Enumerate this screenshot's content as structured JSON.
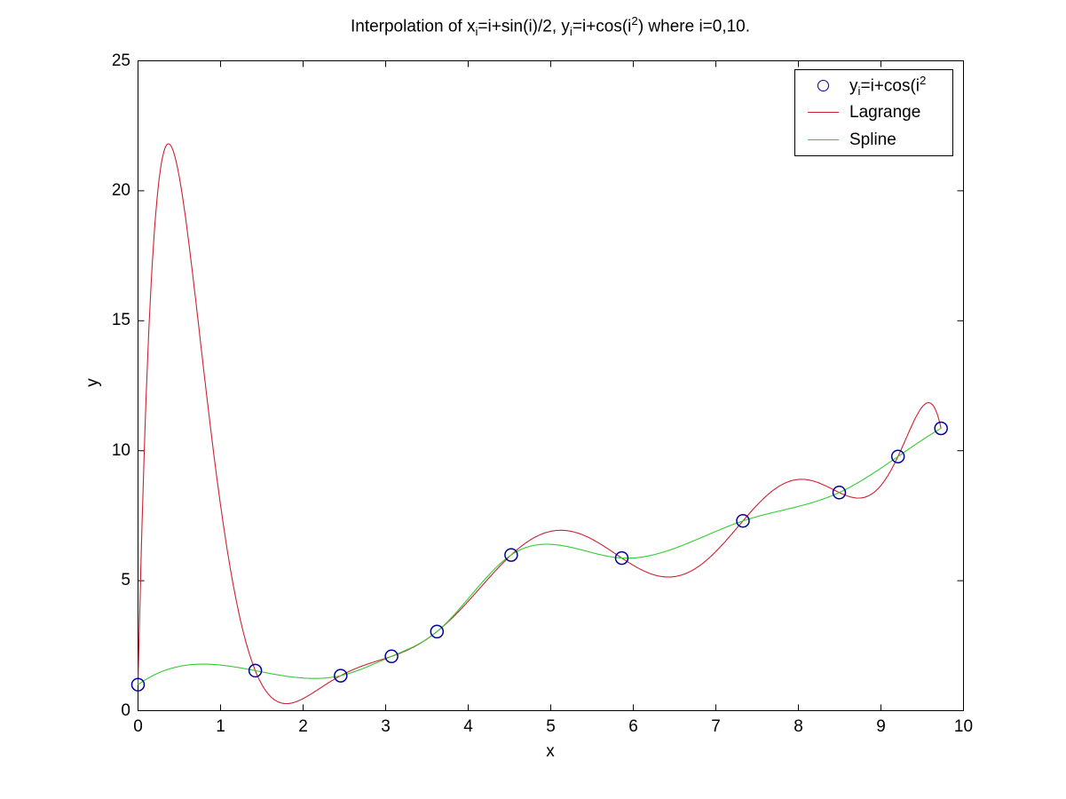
{
  "title": {
    "p0": "Interpolation of x",
    "p1": "i",
    "p2": "=i+sin(i)/2, y",
    "p3": "i",
    "p4": "=i+cos(i",
    "p5": "2",
    "p6": ") where i=0,10."
  },
  "axes": {
    "xlabel": "x",
    "ylabel": "y"
  },
  "legend": {
    "item1": {
      "p0": "y",
      "p1": "i",
      "p2": "=i+cos(i",
      "p3": "2"
    },
    "item2": "Lagrange",
    "item3": "Spline"
  },
  "colors": {
    "lagrange": "#cc2233",
    "spline": "#33cc33",
    "marker": "#000099",
    "axis": "#000000",
    "background": "#ffffff"
  },
  "chart_data": {
    "type": "line",
    "title": "Interpolation of x_i=i+sin(i)/2, y_i=i+cos(i^2) where i=0,10.",
    "xlabel": "x",
    "ylabel": "y",
    "xlim": [
      0,
      10
    ],
    "ylim": [
      0,
      25
    ],
    "xticks": [
      0,
      1,
      2,
      3,
      4,
      5,
      6,
      7,
      8,
      9,
      10
    ],
    "yticks": [
      0,
      5,
      10,
      15,
      20,
      25
    ],
    "grid": false,
    "legend_position": "top-right",
    "data_points": {
      "name": "y_i=i+cos(i^2)",
      "marker": "open-circle",
      "color": "#000099",
      "i": [
        0,
        1,
        2,
        3,
        4,
        5,
        6,
        7,
        8,
        9,
        10
      ],
      "x": [
        0,
        1.420735,
        2.454649,
        3.07056,
        3.621599,
        4.520537,
        5.860293,
        7.328493,
        8.494679,
        9.206059,
        9.727989
      ],
      "y": [
        1,
        1.540302,
        1.346356,
        2.08887,
        3.042341,
        5.991203,
        5.872036,
        7.300593,
        8.391857,
        9.776686,
        10.862319
      ]
    },
    "series": [
      {
        "name": "Lagrange",
        "method": "lagrange-polynomial",
        "color": "#cc2233",
        "peak_near": [
          0.41,
          21.9
        ]
      },
      {
        "name": "Spline",
        "method": "not-a-knot-cubic-spline",
        "color": "#33cc33"
      }
    ]
  }
}
